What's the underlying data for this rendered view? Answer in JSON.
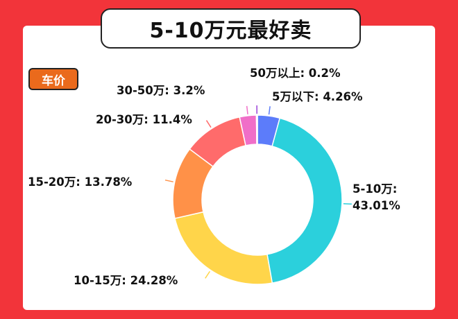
{
  "title": "5-10万元最好卖",
  "tag": "车价",
  "chart_data": {
    "type": "pie",
    "donut": true,
    "slices": [
      {
        "label": "5万以下",
        "value": 4.26,
        "display": "5万以下: 4.26%",
        "color": "#5c7cfa"
      },
      {
        "label": "5-10万",
        "value": 43.01,
        "display": [
          "5-10万:",
          "43.01%"
        ],
        "color": "#2bd0dc"
      },
      {
        "label": "10-15万",
        "value": 24.28,
        "display": "10-15万: 24.28%",
        "color": "#ffd54a"
      },
      {
        "label": "15-20万",
        "value": 13.78,
        "display": "15-20万: 13.78%",
        "color": "#ff9148"
      },
      {
        "label": "20-30万",
        "value": 11.4,
        "display": "20-30万: 11.4%",
        "color": "#ff6b6b"
      },
      {
        "label": "30-50万",
        "value": 3.2,
        "display": "30-50万: 3.2%",
        "color": "#f06ec8"
      },
      {
        "label": "50万以上",
        "value": 0.2,
        "display": "50万以上: 0.2%",
        "color": "#9a40d8"
      }
    ]
  }
}
